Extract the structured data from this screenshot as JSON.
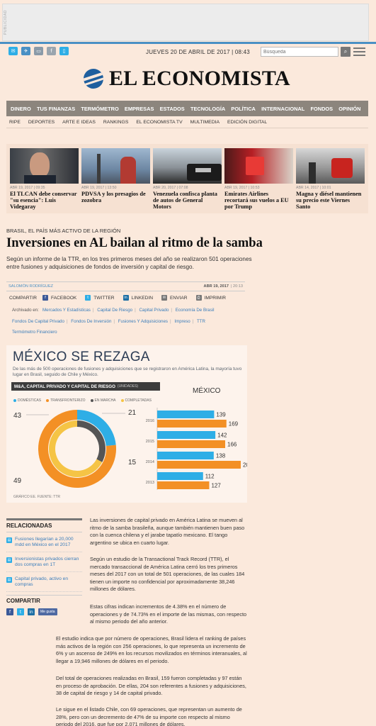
{
  "ad": {
    "label": "PUBLICIDAD"
  },
  "topbar": {
    "date": "JUEVES 20 DE ABRIL DE 2017 | 08:43",
    "search_placeholder": "Búsqueda"
  },
  "logo": {
    "text": "EL ECONOMISTA"
  },
  "nav_primary": [
    "DINERO",
    "TUS FINANZAS",
    "TERMÓMETRO",
    "EMPRESAS",
    "ESTADOS",
    "TECNOLOGÍA",
    "POLÍTICA",
    "INTERNACIONAL",
    "FONDOS",
    "OPINIÓN"
  ],
  "nav_secondary": [
    "RIPE",
    "DEPORTES",
    "ARTE E IDEAS",
    "RANKINGS",
    "EL ECONOMISTA TV",
    "MULTIMEDIA",
    "EDICIÓN DIGITAL"
  ],
  "featured": [
    {
      "date": "ABR 19, 2017 | 09:35",
      "title": "El TLCAN debe conservar \"su esencia\": Luis Videgaray"
    },
    {
      "date": "ABR 19, 2017 | 13:50",
      "title": "PDVSA y los presagios de zozobra"
    },
    {
      "date": "ABR 20, 2017 | 07:08",
      "title": "Venezuela confisca planta de autos de General Motors"
    },
    {
      "date": "ABR 19, 2017 | 10:53",
      "title": "Emirates Airlines recortará sus vuelos a EU por Trump"
    },
    {
      "date": "ABR 14, 2017 | 10:01",
      "title": "Magna y diésel mantienen su precio este Viernes Santo"
    }
  ],
  "article": {
    "kicker": "BRASIL, EL PAÍS MÁS ACTIVO DE LA REGIÓN",
    "headline": "Inversiones en AL bailan al ritmo de la samba",
    "summary": "Según un informe de la TTR, en los tres primeros meses del año se realizaron 501 operaciones entre fusiones y adquisiciones de fondos de inversión y capital de riesgo.",
    "author": "SALOMÓN RODRÍGUEZ",
    "date": "ABR 19, 2017",
    "time": "| 20:13",
    "share_label": "COMPARTIR",
    "share": [
      "FACEBOOK",
      "TWITTER",
      "LINKEDIN",
      "ENVIAR",
      "IMPRIMIR"
    ],
    "archived_label": "Archivado en:",
    "tags": [
      "Mercados Y Estadísticas",
      "Capital De Riesgo",
      "Capital Privado",
      "Economía De Brasil",
      "Fondos De Capital Privado",
      "Fondos De Inversión",
      "Fusiones Y Adquisiciones",
      "Impreso",
      "TTR",
      "Termómetro Financiero"
    ],
    "paragraphs": [
      "Las inversiones de capital privado en América Latina se mueven al ritmo de la samba brasileña, aunque también mantienen buen paso con la cuenca chilena y el jarabe tapatío mexicano. El tango argentino se ubica en cuarto lugar.",
      "Según un estudio de la Transactional Track Record (TTR), el mercado transaccional de América Latina cerró los tres primeros meses del 2017 con un total de 501 operaciones, de las cuales 184 tienen un importe no confidencial por aproximadamente 38,246 millones de dólares.",
      "Estas cifras indican incrementos de 4.38% en el número de operaciones y de 74.73% en el importe de las mismas, con respecto al mismo periodo del año anterior.",
      "El estudio indica que por número de operaciones, Brasil lidera el ranking de países más activos de la región con 256 operaciones, lo que representa un incremento de 6% y un ascenso de 249% en los recursos movilizados en términos interanuales, al llegar a 19,946 millones de dólares en el periodo.",
      "Del total de operaciones realizadas en Brasil, 159 fueron completadas y 97 están en proceso de aprobación. De ellas, 204 son referentes a fusiones y adquisiciones, 38 de capital de riesgo y 14 de capital privado.",
      "Le sigue en el listado Chile, con 69 operaciones, que representan un aumento de 28%, pero con un decremento de 47% de su importe con respecto al mismo periodo del 2016, que fue por 2,071 millones de dólares."
    ]
  },
  "infographic": {
    "title": "MÉXICO SE REZAGA",
    "subtitle": "De las más de 500 operaciones de fusiones y adquisiciones que se registraron en América Latina, la mayoría tuvo lugar en Brasil, seguido de Chile y México.",
    "bar_title": "M&A, CAPITAL PRIVADO Y CAPITAL DE RIESGO",
    "bar_unit": "(UNIDADES)",
    "legend": [
      "DOMÉSTICAS",
      "TRANSFRONTERIZO",
      "EN MARCHA",
      "COMPLETADAS"
    ],
    "country": "MÉXICO",
    "source": "GRÁFICO EE. FUENTE: TTR",
    "colors": {
      "blue": "#2eaee6",
      "orange": "#f39025",
      "dark": "#555555",
      "yellow": "#f5c445"
    }
  },
  "chart_data": [
    {
      "type": "pie",
      "labels": [
        "DOMÉSTICAS",
        "TRANSFRONTERIZO",
        "EN MARCHA",
        "COMPLETADAS"
      ],
      "outer": [
        {
          "name": "DOMÉSTICAS",
          "value": 15
        },
        {
          "name": "TRANSFRONTERIZO",
          "value": 49
        }
      ],
      "inner": [
        {
          "name": "EN MARCHA",
          "value": 21
        },
        {
          "name": "COMPLETADAS",
          "value": 43
        }
      ]
    },
    {
      "type": "bar",
      "orientation": "horizontal",
      "categories": [
        "2016",
        "2015",
        "2014",
        "2013"
      ],
      "series": [
        {
          "name": "DOMÉSTICAS",
          "values": [
            139,
            142,
            138,
            112
          ]
        },
        {
          "name": "TRANSFRONTERIZO",
          "values": [
            169,
            166,
            204,
            127
          ]
        }
      ]
    }
  ],
  "related": {
    "title": "RELACIONADAS",
    "items": [
      "Fusiones llegarían a 20,000 mdd en México en el 2017",
      "Inversionistas privados cierran dos compras en 1T",
      "Capital privado, activo en compras"
    ],
    "share_title": "COMPARTIR",
    "like": "Me gusta"
  }
}
